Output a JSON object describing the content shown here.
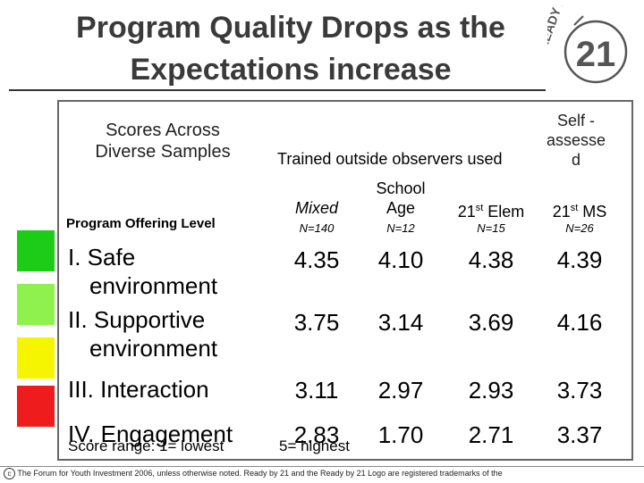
{
  "title_line1": "Program Quality Drops as the",
  "title_line2": "Expectations increase",
  "logo": {
    "text_top": "READY BY",
    "text_num": "21"
  },
  "table": {
    "corner_header": [
      "Scores Across",
      "Diverse Samples"
    ],
    "group_header": "Trained outside observers used",
    "self_header": [
      "Self -",
      "assesse",
      "d"
    ],
    "row_header_label": "Program Offering Level",
    "columns": [
      {
        "label": "Mixed",
        "n": "N=140"
      },
      {
        "label_line1": "School",
        "label_line2": "Age",
        "n": "N=12"
      },
      {
        "label": "21",
        "sup": "st",
        "label_suffix": " Elem",
        "n": "N=15"
      },
      {
        "label": "21",
        "sup": "st",
        "label_suffix": " MS",
        "n": "N=26"
      }
    ],
    "rows": [
      {
        "label_line1": "I. Safe",
        "label_line2": "environment",
        "color": "#1ccc16",
        "values": [
          "4.35",
          "4.10",
          "4.38",
          "4.39"
        ]
      },
      {
        "label_line1": "II. Supportive",
        "label_line2": "environment",
        "color": "#8ef14d",
        "values": [
          "3.75",
          "3.14",
          "3.69",
          "4.16"
        ]
      },
      {
        "label_line1": "III. Interaction",
        "color": "#f5f500",
        "values": [
          "3.11",
          "2.97",
          "2.93",
          "3.73"
        ]
      },
      {
        "label_line1": "IV. Engagement",
        "color": "#ee1c1c",
        "values": [
          "2.83",
          "1.70",
          "2.71",
          "3.37"
        ]
      }
    ]
  },
  "footnote": {
    "left": "Score range:  1= lowest",
    "right": "5= highest"
  },
  "footer_text": "The Forum for Youth Investment 2006, unless otherwise noted. Ready by 21 and the Ready by 21 Logo are registered trademarks of the",
  "footer_symbol": "c"
}
